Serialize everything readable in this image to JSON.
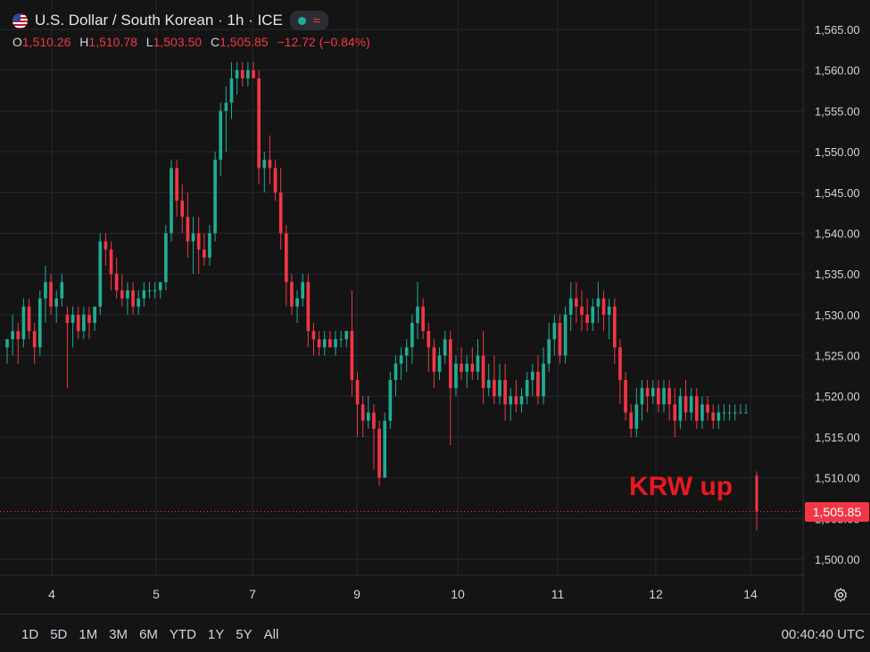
{
  "header": {
    "title": "U.S. Dollar / South Korean · 1h · ICE",
    "ohlc": {
      "o_label": "O",
      "o": "1,510.26",
      "h_label": "H",
      "h": "1,510.78",
      "l_label": "L",
      "l": "1,503.50",
      "c_label": "C",
      "c": "1,505.85",
      "change": "−12.72 (−0.84%)"
    }
  },
  "icons": [
    "us-flag-icon",
    "market-dot-icon",
    "wave-icon",
    "settings-gear-icon"
  ],
  "colors": {
    "up": "#22ab94",
    "down": "#f23645",
    "background": "#141414",
    "grid": "#232631",
    "annotation": "#e8191f"
  },
  "current_price": "1,505.85",
  "annotation": "KRW up",
  "ranges": [
    "1D",
    "5D",
    "1M",
    "3M",
    "6M",
    "YTD",
    "1Y",
    "5Y",
    "All"
  ],
  "clock": "00:40:40 UTC",
  "chart_data": {
    "type": "candlestick",
    "title": "U.S. Dollar / South Korean · 1h · ICE",
    "ylim": [
      1498,
      1567
    ],
    "y_ticks": [
      "1,500.00",
      "1,505.00",
      "1,510.00",
      "1,515.00",
      "1,520.00",
      "1,525.00",
      "1,530.00",
      "1,535.00",
      "1,540.00",
      "1,545.00",
      "1,550.00",
      "1,555.00",
      "1,560.00",
      "1,565.00"
    ],
    "y_tick_values": [
      1500,
      1505,
      1510,
      1515,
      1520,
      1525,
      1530,
      1535,
      1540,
      1545,
      1550,
      1555,
      1560,
      1565
    ],
    "x_ticks": [
      "4",
      "5",
      "7",
      "9",
      "10",
      "11",
      "12",
      "14"
    ],
    "grid": true,
    "price_line": 1505.85,
    "candles": [
      [
        1526,
        1527,
        1524,
        1527
      ],
      [
        1527,
        1530,
        1525,
        1528
      ],
      [
        1528,
        1529,
        1524,
        1527
      ],
      [
        1527,
        1532,
        1526,
        1531
      ],
      [
        1531,
        1532,
        1527,
        1528
      ],
      [
        1528,
        1529,
        1524,
        1526
      ],
      [
        1526,
        1533,
        1525,
        1532
      ],
      [
        1532,
        1536,
        1529,
        1534
      ],
      [
        1534,
        1535,
        1530,
        1531
      ],
      [
        1531,
        1533,
        1529,
        1532
      ],
      [
        1532,
        1535,
        1531,
        1534
      ],
      [
        1530,
        1531,
        1521,
        1529
      ],
      [
        1529,
        1531,
        1526,
        1530
      ],
      [
        1530,
        1531,
        1527,
        1528
      ],
      [
        1528,
        1531,
        1527,
        1530
      ],
      [
        1530,
        1531,
        1527,
        1529
      ],
      [
        1529,
        1531,
        1528,
        1531
      ],
      [
        1531,
        1540,
        1530,
        1539
      ],
      [
        1539,
        1540,
        1536,
        1538
      ],
      [
        1538,
        1539,
        1533,
        1535
      ],
      [
        1535,
        1537,
        1532,
        1533
      ],
      [
        1533,
        1535,
        1531,
        1532
      ],
      [
        1532,
        1534,
        1530,
        1533
      ],
      [
        1533,
        1534,
        1530,
        1531
      ],
      [
        1531,
        1533,
        1530,
        1532
      ],
      [
        1532,
        1534,
        1531,
        1533
      ],
      [
        1533,
        1534,
        1532,
        1533
      ],
      [
        1533,
        1534,
        1532,
        1533
      ],
      [
        1533,
        1534,
        1532,
        1534
      ],
      [
        1534,
        1541,
        1533,
        1540
      ],
      [
        1540,
        1549,
        1539,
        1548
      ],
      [
        1548,
        1549,
        1542,
        1544
      ],
      [
        1544,
        1546,
        1540,
        1542
      ],
      [
        1542,
        1545,
        1537,
        1539
      ],
      [
        1539,
        1542,
        1535,
        1540
      ],
      [
        1540,
        1542,
        1535,
        1538
      ],
      [
        1538,
        1540,
        1536,
        1537
      ],
      [
        1537,
        1541,
        1536,
        1540
      ],
      [
        1540,
        1550,
        1539,
        1549
      ],
      [
        1549,
        1556,
        1547,
        1555
      ],
      [
        1555,
        1558,
        1550,
        1556
      ],
      [
        1556,
        1561,
        1554,
        1559
      ],
      [
        1559,
        1561,
        1557,
        1560
      ],
      [
        1560,
        1561,
        1558,
        1559
      ],
      [
        1559,
        1561,
        1558,
        1560
      ],
      [
        1560,
        1561,
        1559,
        1559
      ],
      [
        1559,
        1560,
        1546,
        1548
      ],
      [
        1548,
        1550,
        1545,
        1549
      ],
      [
        1549,
        1552,
        1546,
        1548
      ],
      [
        1548,
        1549,
        1544,
        1545
      ],
      [
        1545,
        1548,
        1538,
        1540
      ],
      [
        1540,
        1541,
        1531,
        1534
      ],
      [
        1534,
        1535,
        1530,
        1531
      ],
      [
        1531,
        1533,
        1529,
        1532
      ],
      [
        1532,
        1535,
        1531,
        1534
      ],
      [
        1534,
        1535,
        1526,
        1528
      ],
      [
        1528,
        1529,
        1525,
        1527
      ],
      [
        1527,
        1528,
        1525,
        1526
      ],
      [
        1526,
        1528,
        1525,
        1527
      ],
      [
        1527,
        1528,
        1526,
        1526
      ],
      [
        1526,
        1528,
        1525,
        1527
      ],
      [
        1527,
        1528,
        1526,
        1527
      ],
      [
        1527,
        1528,
        1526,
        1528
      ],
      [
        1528,
        1533,
        1520,
        1522
      ],
      [
        1522,
        1523,
        1515,
        1519
      ],
      [
        1519,
        1520,
        1515,
        1517
      ],
      [
        1517,
        1520,
        1516,
        1518
      ],
      [
        1518,
        1519,
        1511,
        1516
      ],
      [
        1516,
        1517,
        1509,
        1510
      ],
      [
        1510,
        1518,
        1510,
        1517
      ],
      [
        1517,
        1523,
        1516,
        1522
      ],
      [
        1522,
        1525,
        1520,
        1524
      ],
      [
        1524,
        1526,
        1522,
        1525
      ],
      [
        1525,
        1527,
        1523,
        1526
      ],
      [
        1526,
        1530,
        1524,
        1529
      ],
      [
        1529,
        1534,
        1527,
        1531
      ],
      [
        1531,
        1532,
        1527,
        1528
      ],
      [
        1528,
        1529,
        1523,
        1526
      ],
      [
        1526,
        1527,
        1521,
        1523
      ],
      [
        1523,
        1526,
        1522,
        1525
      ],
      [
        1525,
        1528,
        1524,
        1527
      ],
      [
        1527,
        1528,
        1514,
        1521
      ],
      [
        1521,
        1525,
        1520,
        1524
      ],
      [
        1524,
        1526,
        1522,
        1523
      ],
      [
        1523,
        1525,
        1521,
        1524
      ],
      [
        1524,
        1526,
        1522,
        1523
      ],
      [
        1523,
        1527,
        1522,
        1525
      ],
      [
        1525,
        1528,
        1519,
        1521
      ],
      [
        1521,
        1524,
        1520,
        1522
      ],
      [
        1522,
        1525,
        1519,
        1520
      ],
      [
        1520,
        1524,
        1519,
        1522
      ],
      [
        1522,
        1524,
        1517,
        1519
      ],
      [
        1519,
        1521,
        1517,
        1520
      ],
      [
        1520,
        1522,
        1518,
        1519
      ],
      [
        1519,
        1521,
        1518,
        1520
      ],
      [
        1520,
        1523,
        1519,
        1522
      ],
      [
        1522,
        1524,
        1520,
        1523
      ],
      [
        1523,
        1525,
        1519,
        1520
      ],
      [
        1520,
        1526,
        1519,
        1524
      ],
      [
        1524,
        1529,
        1523,
        1527
      ],
      [
        1527,
        1530,
        1525,
        1529
      ],
      [
        1529,
        1530,
        1524,
        1525
      ],
      [
        1525,
        1531,
        1524,
        1530
      ],
      [
        1530,
        1534,
        1528,
        1532
      ],
      [
        1532,
        1534,
        1529,
        1531
      ],
      [
        1531,
        1533,
        1528,
        1530
      ],
      [
        1530,
        1532,
        1528,
        1529
      ],
      [
        1529,
        1532,
        1528,
        1531
      ],
      [
        1531,
        1534,
        1529,
        1532
      ],
      [
        1532,
        1533,
        1528,
        1530
      ],
      [
        1530,
        1532,
        1527,
        1531
      ],
      [
        1531,
        1532,
        1524,
        1526
      ],
      [
        1526,
        1527,
        1519,
        1522
      ],
      [
        1522,
        1523,
        1517,
        1518
      ],
      [
        1518,
        1519,
        1515,
        1516
      ],
      [
        1516,
        1521,
        1515,
        1519
      ],
      [
        1519,
        1522,
        1517,
        1521
      ],
      [
        1521,
        1522,
        1518,
        1520
      ],
      [
        1520,
        1522,
        1519,
        1521
      ],
      [
        1521,
        1522,
        1518,
        1519
      ],
      [
        1519,
        1522,
        1518,
        1521
      ],
      [
        1521,
        1522,
        1517,
        1519
      ],
      [
        1519,
        1521,
        1515,
        1517
      ],
      [
        1517,
        1521,
        1516,
        1520
      ],
      [
        1520,
        1522,
        1517,
        1518
      ],
      [
        1518,
        1521,
        1517,
        1520
      ],
      [
        1520,
        1521,
        1516,
        1517
      ],
      [
        1517,
        1520,
        1516,
        1519
      ],
      [
        1519,
        1520,
        1517,
        1518
      ],
      [
        1518,
        1519,
        1516,
        1517
      ],
      [
        1517,
        1519,
        1516,
        1518
      ],
      [
        1518,
        1519,
        1517,
        1518
      ],
      [
        1518,
        1519,
        1517,
        1518
      ],
      [
        1518,
        1519,
        1517,
        1518
      ],
      [
        1518,
        1519,
        1518,
        1518
      ],
      [
        1518,
        1519,
        1518,
        1518
      ],
      [
        1510.26,
        1510.78,
        1503.5,
        1505.85
      ]
    ]
  }
}
